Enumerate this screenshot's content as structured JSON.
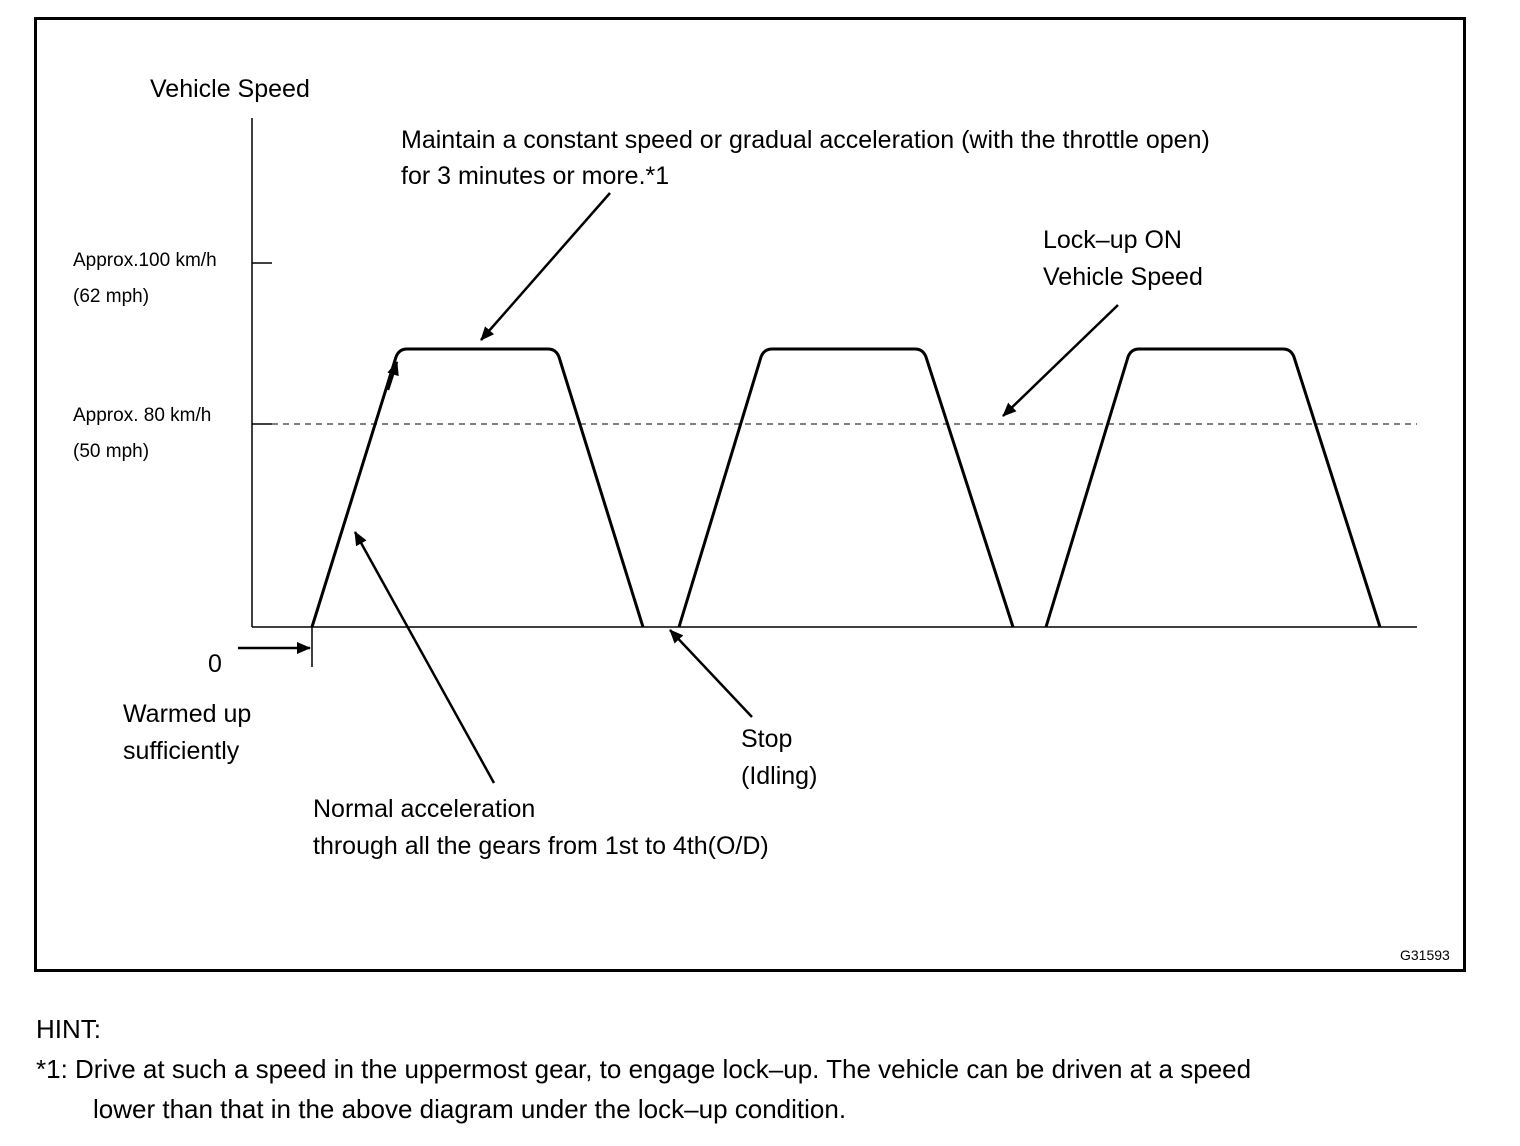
{
  "diagram": {
    "y_axis_label": "Vehicle Speed",
    "tick_100": "Approx.100 km/h",
    "tick_100_mph": "(62 mph)",
    "tick_80": "Approx. 80 km/h",
    "tick_80_mph": "(50 mph)",
    "zero_label": "0",
    "maintain_line1": "Maintain a constant speed or gradual acceleration (with the throttle open)",
    "maintain_line2": "for 3 minutes or more.*1",
    "lockup_line1": "Lock–up ON",
    "lockup_line2": "Vehicle Speed",
    "warmed_line1": "Warmed up",
    "warmed_line2": "sufficiently",
    "stop_line1": "Stop",
    "stop_line2": "(Idling)",
    "normal_line1": "Normal acceleration",
    "normal_line2": "through all the gears from 1st to 4th(O/D)",
    "figure_id": "G31593"
  },
  "hint": {
    "title": "HINT:",
    "line1": "*1: Drive at such a speed in the uppermost gear, to engage lock–up. The vehicle can be driven at a speed",
    "line2": "lower than that in the above diagram under the lock–up condition."
  }
}
